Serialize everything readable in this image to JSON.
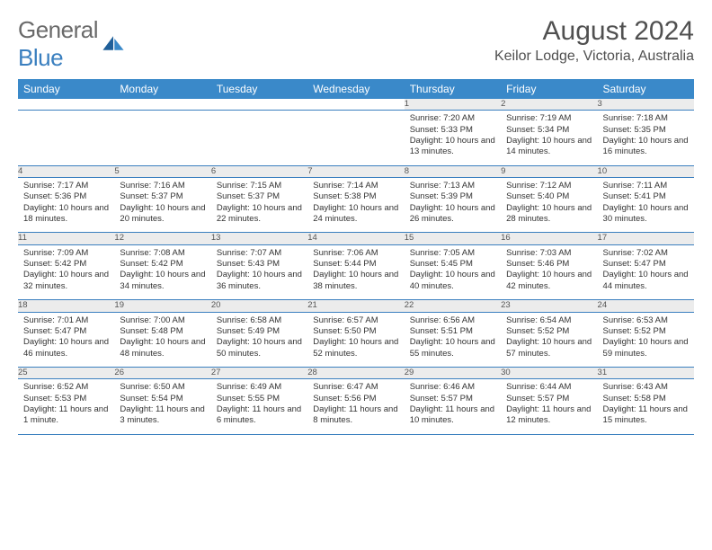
{
  "brand": {
    "general": "General",
    "blue": "Blue"
  },
  "title": "August 2024",
  "location": "Keilor Lodge, Victoria, Australia",
  "weekday_headers": [
    "Sunday",
    "Monday",
    "Tuesday",
    "Wednesday",
    "Thursday",
    "Friday",
    "Saturday"
  ],
  "colors": {
    "header_bg": "#3a89c9",
    "header_fg": "#ffffff",
    "row_border": "#3a7fbf",
    "daynum_bg": "#ececec",
    "text": "#505050"
  },
  "weeks": [
    [
      null,
      null,
      null,
      null,
      {
        "n": "1",
        "sunrise": "7:20 AM",
        "sunset": "5:33 PM",
        "daylight": "10 hours and 13 minutes."
      },
      {
        "n": "2",
        "sunrise": "7:19 AM",
        "sunset": "5:34 PM",
        "daylight": "10 hours and 14 minutes."
      },
      {
        "n": "3",
        "sunrise": "7:18 AM",
        "sunset": "5:35 PM",
        "daylight": "10 hours and 16 minutes."
      }
    ],
    [
      {
        "n": "4",
        "sunrise": "7:17 AM",
        "sunset": "5:36 PM",
        "daylight": "10 hours and 18 minutes."
      },
      {
        "n": "5",
        "sunrise": "7:16 AM",
        "sunset": "5:37 PM",
        "daylight": "10 hours and 20 minutes."
      },
      {
        "n": "6",
        "sunrise": "7:15 AM",
        "sunset": "5:37 PM",
        "daylight": "10 hours and 22 minutes."
      },
      {
        "n": "7",
        "sunrise": "7:14 AM",
        "sunset": "5:38 PM",
        "daylight": "10 hours and 24 minutes."
      },
      {
        "n": "8",
        "sunrise": "7:13 AM",
        "sunset": "5:39 PM",
        "daylight": "10 hours and 26 minutes."
      },
      {
        "n": "9",
        "sunrise": "7:12 AM",
        "sunset": "5:40 PM",
        "daylight": "10 hours and 28 minutes."
      },
      {
        "n": "10",
        "sunrise": "7:11 AM",
        "sunset": "5:41 PM",
        "daylight": "10 hours and 30 minutes."
      }
    ],
    [
      {
        "n": "11",
        "sunrise": "7:09 AM",
        "sunset": "5:42 PM",
        "daylight": "10 hours and 32 minutes."
      },
      {
        "n": "12",
        "sunrise": "7:08 AM",
        "sunset": "5:42 PM",
        "daylight": "10 hours and 34 minutes."
      },
      {
        "n": "13",
        "sunrise": "7:07 AM",
        "sunset": "5:43 PM",
        "daylight": "10 hours and 36 minutes."
      },
      {
        "n": "14",
        "sunrise": "7:06 AM",
        "sunset": "5:44 PM",
        "daylight": "10 hours and 38 minutes."
      },
      {
        "n": "15",
        "sunrise": "7:05 AM",
        "sunset": "5:45 PM",
        "daylight": "10 hours and 40 minutes."
      },
      {
        "n": "16",
        "sunrise": "7:03 AM",
        "sunset": "5:46 PM",
        "daylight": "10 hours and 42 minutes."
      },
      {
        "n": "17",
        "sunrise": "7:02 AM",
        "sunset": "5:47 PM",
        "daylight": "10 hours and 44 minutes."
      }
    ],
    [
      {
        "n": "18",
        "sunrise": "7:01 AM",
        "sunset": "5:47 PM",
        "daylight": "10 hours and 46 minutes."
      },
      {
        "n": "19",
        "sunrise": "7:00 AM",
        "sunset": "5:48 PM",
        "daylight": "10 hours and 48 minutes."
      },
      {
        "n": "20",
        "sunrise": "6:58 AM",
        "sunset": "5:49 PM",
        "daylight": "10 hours and 50 minutes."
      },
      {
        "n": "21",
        "sunrise": "6:57 AM",
        "sunset": "5:50 PM",
        "daylight": "10 hours and 52 minutes."
      },
      {
        "n": "22",
        "sunrise": "6:56 AM",
        "sunset": "5:51 PM",
        "daylight": "10 hours and 55 minutes."
      },
      {
        "n": "23",
        "sunrise": "6:54 AM",
        "sunset": "5:52 PM",
        "daylight": "10 hours and 57 minutes."
      },
      {
        "n": "24",
        "sunrise": "6:53 AM",
        "sunset": "5:52 PM",
        "daylight": "10 hours and 59 minutes."
      }
    ],
    [
      {
        "n": "25",
        "sunrise": "6:52 AM",
        "sunset": "5:53 PM",
        "daylight": "11 hours and 1 minute."
      },
      {
        "n": "26",
        "sunrise": "6:50 AM",
        "sunset": "5:54 PM",
        "daylight": "11 hours and 3 minutes."
      },
      {
        "n": "27",
        "sunrise": "6:49 AM",
        "sunset": "5:55 PM",
        "daylight": "11 hours and 6 minutes."
      },
      {
        "n": "28",
        "sunrise": "6:47 AM",
        "sunset": "5:56 PM",
        "daylight": "11 hours and 8 minutes."
      },
      {
        "n": "29",
        "sunrise": "6:46 AM",
        "sunset": "5:57 PM",
        "daylight": "11 hours and 10 minutes."
      },
      {
        "n": "30",
        "sunrise": "6:44 AM",
        "sunset": "5:57 PM",
        "daylight": "11 hours and 12 minutes."
      },
      {
        "n": "31",
        "sunrise": "6:43 AM",
        "sunset": "5:58 PM",
        "daylight": "11 hours and 15 minutes."
      }
    ]
  ],
  "labels": {
    "sunrise": "Sunrise:",
    "sunset": "Sunset:",
    "daylight": "Daylight:"
  }
}
